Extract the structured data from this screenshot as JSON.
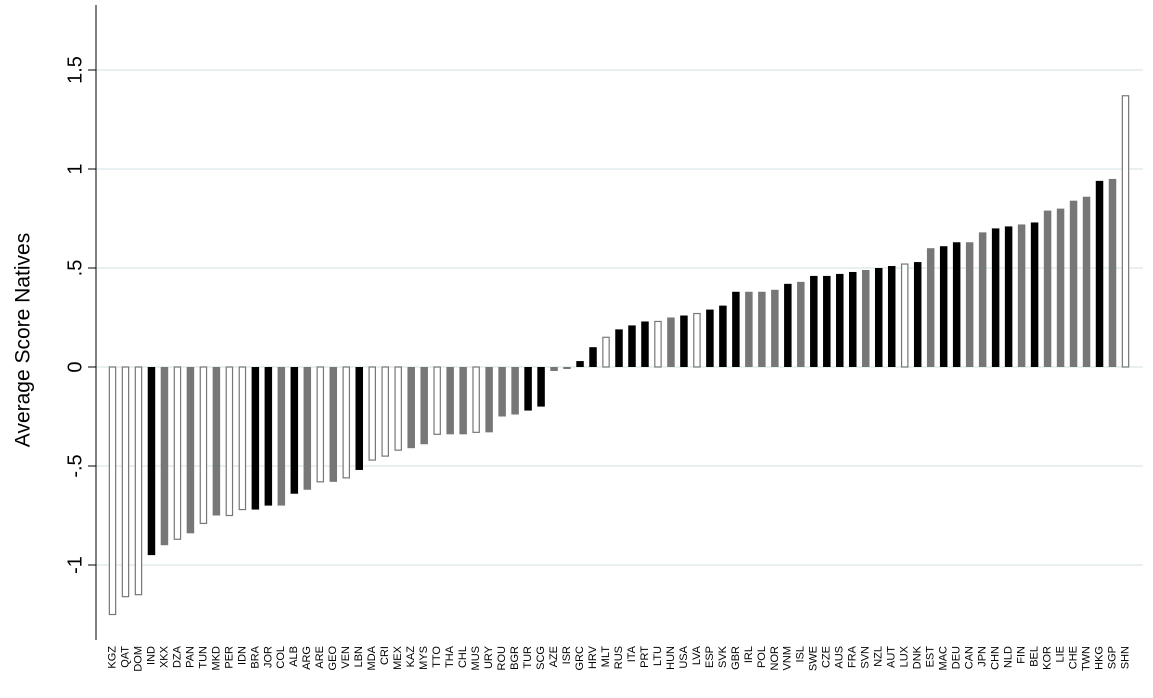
{
  "chart_data": {
    "type": "bar",
    "title": "",
    "xlabel": "",
    "ylabel": "Average Score Natives",
    "ylim": [
      -1.4,
      1.85
    ],
    "yticks": [
      -1,
      -0.5,
      0,
      0.5,
      1,
      1.5
    ],
    "ytick_labels": [
      "-1",
      "-.5",
      "0",
      ".5",
      "1",
      "1.5"
    ],
    "grid": true,
    "legend": "none",
    "colors": {
      "black": "#000000",
      "gray": "#777777",
      "hollow_fill": "#ffffff",
      "hollow_stroke": "#777777",
      "grid": "#d9e8ea"
    },
    "categories": [
      "KGZ",
      "QAT",
      "DOM",
      "IND",
      "XKX",
      "DZA",
      "PAN",
      "TUN",
      "MKD",
      "PER",
      "IDN",
      "BRA",
      "JOR",
      "COL",
      "ALB",
      "ARG",
      "ARE",
      "GEO",
      "VEN",
      "LBN",
      "MDA",
      "CRI",
      "MEX",
      "KAZ",
      "MYS",
      "TTO",
      "THA",
      "CHL",
      "MUS",
      "URY",
      "ROU",
      "BGR",
      "TUR",
      "SCG",
      "AZE",
      "ISR",
      "GRC",
      "HRV",
      "MLT",
      "RUS",
      "ITA",
      "PRT",
      "LTU",
      "HUN",
      "USA",
      "LVA",
      "ESP",
      "SVK",
      "GBR",
      "IRL",
      "POL",
      "NOR",
      "VNM",
      "ISL",
      "SWE",
      "CZE",
      "AUS",
      "FRA",
      "SVN",
      "NZL",
      "AUT",
      "LUX",
      "DNK",
      "EST",
      "MAC",
      "DEU",
      "CAN",
      "JPN",
      "CHN",
      "NLD",
      "FIN",
      "BEL",
      "KOR",
      "LIE",
      "CHE",
      "TWN",
      "HKG",
      "SGP",
      "SHN"
    ],
    "values": [
      -1.25,
      -1.16,
      -1.15,
      -0.95,
      -0.9,
      -0.87,
      -0.84,
      -0.79,
      -0.75,
      -0.75,
      -0.72,
      -0.72,
      -0.7,
      -0.7,
      -0.64,
      -0.62,
      -0.58,
      -0.58,
      -0.56,
      -0.52,
      -0.47,
      -0.45,
      -0.42,
      -0.41,
      -0.39,
      -0.34,
      -0.34,
      -0.34,
      -0.33,
      -0.33,
      -0.25,
      -0.24,
      -0.22,
      -0.2,
      -0.02,
      -0.01,
      0.03,
      0.1,
      0.15,
      0.19,
      0.21,
      0.23,
      0.23,
      0.25,
      0.26,
      0.27,
      0.29,
      0.31,
      0.38,
      0.38,
      0.38,
      0.39,
      0.42,
      0.43,
      0.46,
      0.46,
      0.47,
      0.48,
      0.49,
      0.5,
      0.51,
      0.52,
      0.53,
      0.6,
      0.61,
      0.63,
      0.63,
      0.68,
      0.7,
      0.71,
      0.72,
      0.73,
      0.79,
      0.8,
      0.84,
      0.86,
      0.94,
      0.95,
      1.37
    ],
    "styles": [
      "hollow",
      "hollow",
      "hollow",
      "black",
      "gray",
      "hollow",
      "gray",
      "hollow",
      "gray",
      "hollow",
      "hollow",
      "black",
      "black",
      "gray",
      "black",
      "gray",
      "hollow",
      "gray",
      "hollow",
      "black",
      "hollow",
      "hollow",
      "hollow",
      "gray",
      "gray",
      "hollow",
      "gray",
      "gray",
      "hollow",
      "gray",
      "gray",
      "gray",
      "black",
      "black",
      "gray",
      "gray",
      "black",
      "black",
      "hollow",
      "black",
      "black",
      "black",
      "hollow",
      "gray",
      "black",
      "hollow",
      "black",
      "black",
      "black",
      "gray",
      "gray",
      "gray",
      "black",
      "gray",
      "black",
      "black",
      "black",
      "black",
      "gray",
      "black",
      "black",
      "hollow",
      "black",
      "gray",
      "black",
      "black",
      "gray",
      "gray",
      "black",
      "black",
      "gray",
      "black",
      "gray",
      "gray",
      "gray",
      "gray",
      "black",
      "gray",
      "hollow"
    ]
  }
}
